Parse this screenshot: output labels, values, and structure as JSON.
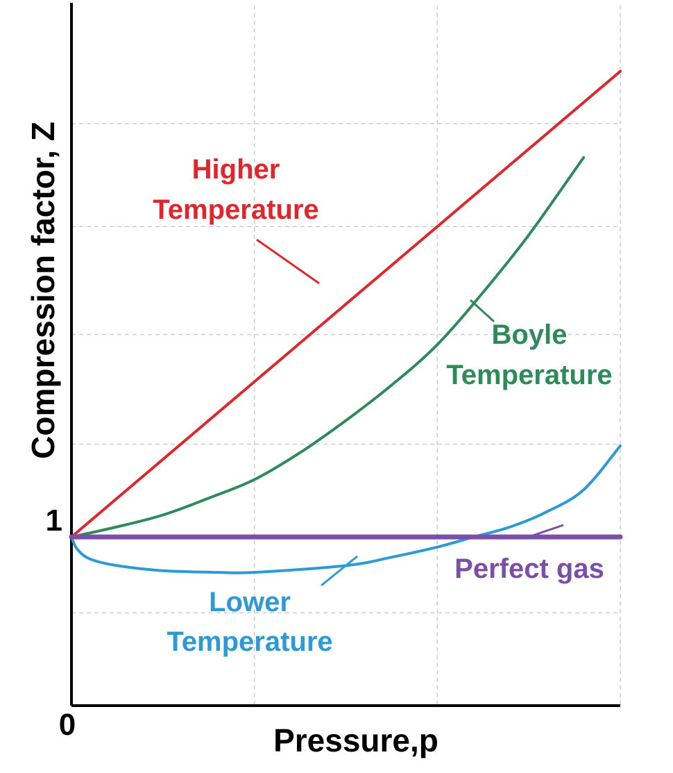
{
  "chart_data": {
    "type": "line",
    "xlabel": "Pressure,p",
    "ylabel": "Compression factor, Z",
    "x_tick_labels": [
      "0"
    ],
    "y_tick_labels": [
      "1"
    ],
    "xlim": [
      0,
      3
    ],
    "ylim": [
      0,
      4.15
    ],
    "grid": true,
    "series": [
      {
        "name": "Higher Temperature",
        "color": "#e0262b",
        "x": [
          0,
          3
        ],
        "y": [
          1,
          3.76
        ]
      },
      {
        "name": "Boyle Temperature",
        "color": "#2e8a5a",
        "x": [
          0,
          0.25,
          0.5,
          0.75,
          1.0,
          1.25,
          1.5,
          1.75,
          2.0,
          2.25,
          2.5,
          2.8
        ],
        "y": [
          1,
          1.06,
          1.13,
          1.23,
          1.34,
          1.5,
          1.69,
          1.9,
          2.14,
          2.45,
          2.79,
          3.25
        ]
      },
      {
        "name": "Lower Temperature",
        "color": "#2b9ad6",
        "x": [
          0,
          0.03,
          0.1,
          0.25,
          0.5,
          0.8,
          1.0,
          1.5,
          1.75,
          2.0,
          2.2,
          2.4,
          2.6,
          2.8,
          3.0
        ],
        "y": [
          1,
          0.93,
          0.87,
          0.83,
          0.8,
          0.79,
          0.79,
          0.83,
          0.88,
          0.94,
          1.0,
          1.06,
          1.15,
          1.28,
          1.54
        ]
      },
      {
        "name": "Perfect gas",
        "color": "#7b4fa8",
        "x": [
          0,
          3
        ],
        "y": [
          1,
          1
        ]
      }
    ],
    "annotations": [
      {
        "lines": [
          "Higher",
          "Temperature"
        ],
        "color": "#e0262b"
      },
      {
        "lines": [
          "Boyle",
          "Temperature"
        ],
        "color": "#2e8a5a"
      },
      {
        "lines": [
          "Lower",
          "Temperature"
        ],
        "color": "#2b9ad6"
      },
      {
        "lines": [
          "Perfect gas"
        ],
        "color": "#7b4fa8"
      }
    ]
  }
}
